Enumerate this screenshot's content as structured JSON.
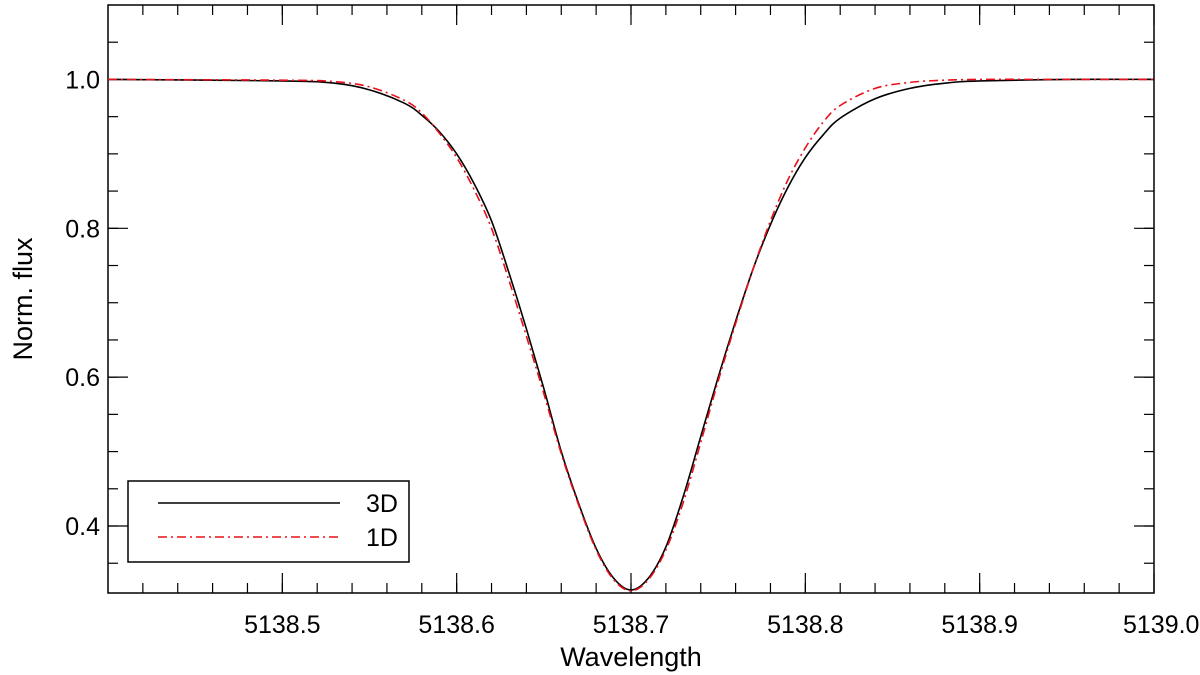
{
  "chart_data": {
    "type": "line",
    "title": "",
    "xlabel": "Wavelength",
    "ylabel": "Norm. flux",
    "xlim": [
      5138.4,
      5139.0
    ],
    "ylim": [
      0.31,
      1.1
    ],
    "x_ticks": [
      5138.5,
      5138.6,
      5138.7,
      5138.8,
      5138.9,
      5139.0
    ],
    "x_tick_labels": [
      "5138.5",
      "5138.6",
      "5138.7",
      "5138.8",
      "5138.9",
      "5139.0"
    ],
    "x_minor_step": 0.02,
    "y_ticks": [
      0.4,
      0.6,
      0.8,
      1.0
    ],
    "y_tick_labels": [
      "0.4",
      "0.6",
      "0.8",
      "1.0"
    ],
    "y_minor_step": 0.05,
    "grid": false,
    "legend_position": "bottom-left",
    "series": [
      {
        "name": "3D",
        "color": "#000000",
        "style": "solid",
        "x": [
          5138.4,
          5138.5,
          5138.53,
          5138.55,
          5138.57,
          5138.58,
          5138.59,
          5138.6,
          5138.61,
          5138.62,
          5138.63,
          5138.64,
          5138.65,
          5138.66,
          5138.67,
          5138.68,
          5138.69,
          5138.7,
          5138.71,
          5138.72,
          5138.73,
          5138.74,
          5138.75,
          5138.76,
          5138.77,
          5138.78,
          5138.79,
          5138.8,
          5138.81,
          5138.82,
          5138.84,
          5138.86,
          5138.88,
          5138.9,
          5138.95,
          5139.0
        ],
        "y": [
          1.0,
          0.998,
          0.995,
          0.986,
          0.968,
          0.952,
          0.93,
          0.9,
          0.86,
          0.81,
          0.74,
          0.665,
          0.585,
          0.5,
          0.43,
          0.37,
          0.33,
          0.314,
          0.33,
          0.372,
          0.44,
          0.52,
          0.6,
          0.675,
          0.745,
          0.805,
          0.855,
          0.895,
          0.925,
          0.948,
          0.974,
          0.988,
          0.995,
          0.998,
          1.0,
          1.0
        ]
      },
      {
        "name": "1D",
        "color": "#e8101a",
        "style": "dashdot",
        "x": [
          5138.4,
          5138.5,
          5138.53,
          5138.55,
          5138.57,
          5138.58,
          5138.59,
          5138.6,
          5138.61,
          5138.62,
          5138.63,
          5138.64,
          5138.65,
          5138.66,
          5138.67,
          5138.68,
          5138.69,
          5138.7,
          5138.71,
          5138.72,
          5138.73,
          5138.74,
          5138.75,
          5138.76,
          5138.77,
          5138.78,
          5138.79,
          5138.8,
          5138.81,
          5138.82,
          5138.84,
          5138.86,
          5138.88,
          5138.9,
          5138.95,
          5139.0
        ],
        "y": [
          1.0,
          0.999,
          0.997,
          0.99,
          0.972,
          0.955,
          0.928,
          0.895,
          0.852,
          0.8,
          0.73,
          0.655,
          0.578,
          0.497,
          0.428,
          0.368,
          0.328,
          0.313,
          0.328,
          0.368,
          0.432,
          0.512,
          0.595,
          0.672,
          0.745,
          0.81,
          0.865,
          0.908,
          0.942,
          0.965,
          0.988,
          0.996,
          0.999,
          1.0,
          1.0,
          1.0
        ]
      }
    ]
  }
}
